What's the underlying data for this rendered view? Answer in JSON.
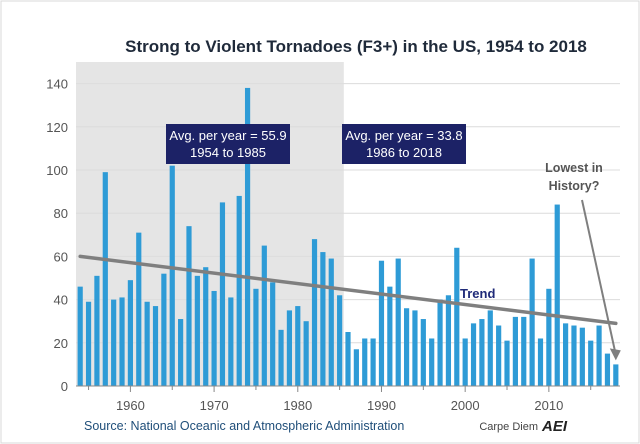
{
  "chart_data": {
    "type": "bar",
    "title": "Strong to Violent Tornadoes (F3+) in the US, 1954 to 2018",
    "xlabel": "",
    "ylabel": "",
    "x": [
      1954,
      1955,
      1956,
      1957,
      1958,
      1959,
      1960,
      1961,
      1962,
      1963,
      1964,
      1965,
      1966,
      1967,
      1968,
      1969,
      1970,
      1971,
      1972,
      1973,
      1974,
      1975,
      1976,
      1977,
      1978,
      1979,
      1980,
      1981,
      1982,
      1983,
      1984,
      1985,
      1986,
      1987,
      1988,
      1989,
      1990,
      1991,
      1992,
      1993,
      1994,
      1995,
      1996,
      1997,
      1998,
      1999,
      2000,
      2001,
      2002,
      2003,
      2004,
      2005,
      2006,
      2007,
      2008,
      2009,
      2010,
      2011,
      2012,
      2013,
      2014,
      2015,
      2016,
      2017,
      2018
    ],
    "values": [
      46,
      39,
      51,
      99,
      40,
      41,
      49,
      71,
      39,
      37,
      52,
      102,
      31,
      74,
      51,
      55,
      44,
      85,
      41,
      88,
      138,
      45,
      65,
      48,
      26,
      35,
      37,
      30,
      68,
      62,
      59,
      42,
      25,
      17,
      22,
      22,
      58,
      46,
      59,
      36,
      35,
      31,
      22,
      40,
      42,
      64,
      22,
      29,
      31,
      35,
      28,
      21,
      32,
      32,
      59,
      22,
      45,
      84,
      29,
      28,
      27,
      21,
      28,
      15,
      10
    ],
    "xlim": [
      1953.5,
      2018.5
    ],
    "ylim": [
      0,
      150
    ],
    "x_ticks": [
      "1960",
      "1970",
      "1980",
      "1990",
      "2000",
      "2010"
    ],
    "y_ticks": [
      "0",
      "20",
      "40",
      "60",
      "80",
      "100",
      "120",
      "140"
    ],
    "grid": true,
    "highlight_range": [
      1954,
      1985
    ],
    "trend": {
      "label": "Trend",
      "start": [
        1954,
        60
      ],
      "end": [
        2018,
        29
      ]
    },
    "annotations": {
      "avg_early": [
        "Avg. per year = 55.9",
        "1954 to 1985"
      ],
      "avg_late": [
        "Avg. per year = 33.8",
        "1986 to 2018"
      ],
      "lowest_note": [
        "Lowest in",
        "History?"
      ],
      "lowest_target": [
        2018,
        10
      ]
    },
    "source": "Source: National Oceanic and Atmospheric Administration",
    "credit": "Carpe Diem",
    "logo_text": "AEI"
  },
  "colors": {
    "bar": "#2e9bd6",
    "shade": "#e5e5e5",
    "trend": "#7f7f7f",
    "annotation_box": "#1c2266",
    "grid": "#dcdcdc"
  }
}
